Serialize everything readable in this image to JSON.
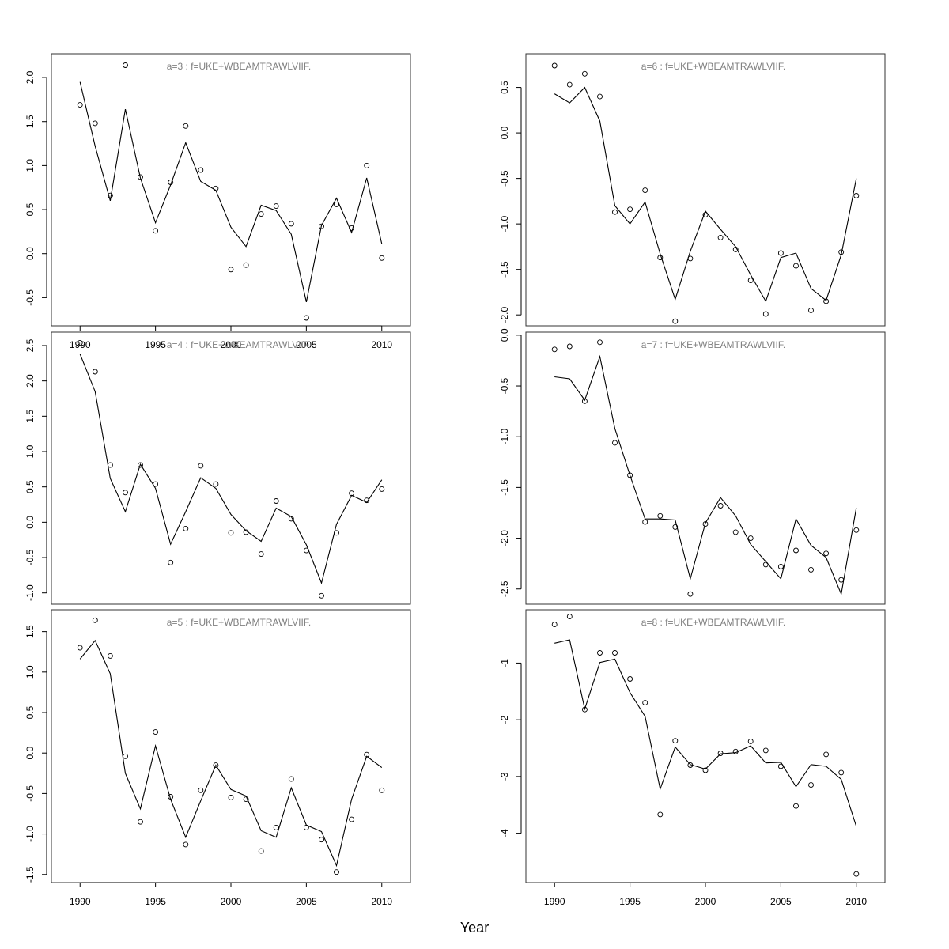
{
  "xlabel": "Year",
  "chart_data": [
    {
      "type": "line",
      "title": "a=3 : f=UKE+WBEAMTRAWLVIIF.",
      "x": [
        1990,
        1991,
        1992,
        1993,
        1994,
        1995,
        1996,
        1997,
        1998,
        1999,
        2000,
        2001,
        2002,
        2003,
        2004,
        2005,
        2006,
        2007,
        2008,
        2009,
        2010
      ],
      "series": [
        {
          "role": "fitted",
          "style": "line",
          "values": [
            1.95,
            1.22,
            0.6,
            1.64,
            0.86,
            0.35,
            0.78,
            1.26,
            0.82,
            0.72,
            0.3,
            0.08,
            0.55,
            0.49,
            0.22,
            -0.55,
            0.32,
            0.63,
            0.24,
            0.86,
            0.11
          ]
        },
        {
          "role": "observed",
          "style": "points",
          "values": [
            1.69,
            1.48,
            0.66,
            2.14,
            0.87,
            0.26,
            0.81,
            1.45,
            0.95,
            0.74,
            -0.18,
            -0.13,
            0.45,
            0.54,
            0.34,
            -0.73,
            0.31,
            0.56,
            0.29,
            1.0,
            -0.05
          ]
        }
      ],
      "yticks": [
        "-0.5",
        "0.0",
        "0.5",
        "1.0",
        "1.5",
        "2.0"
      ],
      "xticks": [
        "1990",
        "1995",
        "2000",
        "2005",
        "2010"
      ],
      "ylim": [
        -0.82,
        2.27
      ],
      "xlim": [
        1988.1,
        2011.9
      ]
    },
    {
      "type": "line",
      "title": "a=6 : f=UKE+WBEAMTRAWLVIIF.",
      "x": [
        1990,
        1991,
        1992,
        1993,
        1994,
        1995,
        1996,
        1997,
        1998,
        1999,
        2000,
        2001,
        2002,
        2003,
        2004,
        2005,
        2006,
        2007,
        2008,
        2009,
        2010
      ],
      "series": [
        {
          "role": "fitted",
          "style": "line",
          "values": [
            0.43,
            0.33,
            0.5,
            0.13,
            -0.8,
            -1.0,
            -0.76,
            -1.33,
            -1.83,
            -1.3,
            -0.86,
            -1.06,
            -1.25,
            -1.56,
            -1.85,
            -1.37,
            -1.32,
            -1.71,
            -1.84,
            -1.34,
            -0.5
          ]
        },
        {
          "role": "observed",
          "style": "points",
          "values": [
            0.74,
            0.53,
            0.65,
            0.4,
            -0.87,
            -0.84,
            -0.63,
            -1.37,
            -2.07,
            -1.38,
            -0.9,
            -1.15,
            -1.28,
            -1.62,
            -1.99,
            -1.32,
            -1.46,
            -1.95,
            -1.85,
            -1.31,
            -0.69
          ]
        }
      ],
      "yticks": [
        "-2.0",
        "-1.5",
        "-1.0",
        "-0.5",
        "0.0",
        "0.5"
      ],
      "xticks": [],
      "ylim": [
        -2.12,
        0.87
      ],
      "xlim": [
        1988.1,
        2011.9
      ]
    },
    {
      "type": "line",
      "title": "a=4 : f=UKE+WBEAMTRAWLVIIF.",
      "x": [
        1990,
        1991,
        1992,
        1993,
        1994,
        1995,
        1996,
        1997,
        1998,
        1999,
        2000,
        2001,
        2002,
        2003,
        2004,
        2005,
        2006,
        2007,
        2008,
        2009,
        2010
      ],
      "series": [
        {
          "role": "fitted",
          "style": "line",
          "values": [
            2.38,
            1.85,
            0.62,
            0.15,
            0.82,
            0.48,
            -0.31,
            0.15,
            0.63,
            0.48,
            0.11,
            -0.12,
            -0.27,
            0.2,
            0.08,
            -0.32,
            -0.86,
            -0.03,
            0.38,
            0.28,
            0.6
          ]
        },
        {
          "role": "observed",
          "style": "points",
          "values": [
            2.54,
            2.13,
            0.81,
            0.42,
            0.81,
            0.54,
            -0.57,
            -0.09,
            0.8,
            0.54,
            -0.15,
            -0.14,
            -0.45,
            0.3,
            0.05,
            -0.4,
            -1.04,
            -0.15,
            0.41,
            0.31,
            0.47
          ]
        }
      ],
      "yticks": [
        "-1.0",
        "-0.5",
        "0.0",
        "0.5",
        "1.0",
        "1.5",
        "2.0",
        "2.5"
      ],
      "xticks": [],
      "ylim": [
        -1.16,
        2.69
      ],
      "xlim": [
        1988.1,
        2011.9
      ]
    },
    {
      "type": "line",
      "title": "a=7 : f=UKE+WBEAMTRAWLVIIF.",
      "x": [
        1990,
        1991,
        1992,
        1993,
        1994,
        1995,
        1996,
        1997,
        1998,
        1999,
        2000,
        2001,
        2002,
        2003,
        2004,
        2005,
        2006,
        2007,
        2008,
        2009,
        2010
      ],
      "series": [
        {
          "role": "fitted",
          "style": "line",
          "values": [
            -0.41,
            -0.43,
            -0.64,
            -0.21,
            -0.92,
            -1.38,
            -1.81,
            -1.81,
            -1.82,
            -2.4,
            -1.85,
            -1.6,
            -1.78,
            -2.06,
            -2.23,
            -2.4,
            -1.81,
            -2.07,
            -2.19,
            -2.55,
            -1.7
          ]
        },
        {
          "role": "observed",
          "style": "points",
          "values": [
            -0.14,
            -0.11,
            -0.65,
            -0.07,
            -1.06,
            -1.38,
            -1.84,
            -1.78,
            -1.89,
            -2.55,
            -1.86,
            -1.68,
            -1.94,
            -2.0,
            -2.26,
            -2.28,
            -2.12,
            -2.31,
            -2.15,
            -2.41,
            -1.92
          ]
        }
      ],
      "yticks": [
        "-2.5",
        "-2.0",
        "-1.5",
        "-1.0",
        "-0.5",
        "0.0"
      ],
      "xticks": [],
      "ylim": [
        -2.65,
        0.03
      ],
      "xlim": [
        1988.1,
        2011.9
      ]
    },
    {
      "type": "line",
      "title": "a=5 : f=UKE+WBEAMTRAWLVIIF.",
      "x": [
        1990,
        1991,
        1992,
        1993,
        1994,
        1995,
        1996,
        1997,
        1998,
        1999,
        2000,
        2001,
        2002,
        2003,
        2004,
        2005,
        2006,
        2007,
        2008,
        2009,
        2010
      ],
      "series": [
        {
          "role": "fitted",
          "style": "line",
          "values": [
            1.16,
            1.39,
            0.98,
            -0.25,
            -0.69,
            0.09,
            -0.57,
            -1.04,
            -0.59,
            -0.15,
            -0.45,
            -0.53,
            -0.96,
            -1.04,
            -0.43,
            -0.89,
            -0.97,
            -1.39,
            -0.57,
            -0.04,
            -0.18
          ]
        },
        {
          "role": "observed",
          "style": "points",
          "values": [
            1.3,
            1.64,
            1.2,
            -0.04,
            -0.85,
            0.26,
            -0.54,
            -1.13,
            -0.46,
            -0.15,
            -0.55,
            -0.57,
            -1.21,
            -0.92,
            -0.32,
            -0.92,
            -1.07,
            -1.47,
            -0.82,
            -0.02,
            -0.46
          ]
        }
      ],
      "yticks": [
        "-1.5",
        "-1.0",
        "-0.5",
        "0.0",
        "0.5",
        "1.0",
        "1.5"
      ],
      "xticks": [
        "1990",
        "1995",
        "2000",
        "2005",
        "2010"
      ],
      "ylim": [
        -1.6,
        1.77
      ],
      "xlim": [
        1988.1,
        2011.9
      ]
    },
    {
      "type": "line",
      "title": "a=8 : f=UKE+WBEAMTRAWLVIIF.",
      "x": [
        1990,
        1991,
        1992,
        1993,
        1994,
        1995,
        1996,
        1997,
        1998,
        1999,
        2000,
        2001,
        2002,
        2003,
        2004,
        2005,
        2006,
        2007,
        2008,
        2009,
        2010
      ],
      "series": [
        {
          "role": "fitted",
          "style": "line",
          "values": [
            -0.65,
            -0.59,
            -1.81,
            -0.99,
            -0.93,
            -1.52,
            -1.94,
            -3.22,
            -2.48,
            -2.79,
            -2.87,
            -2.6,
            -2.58,
            -2.46,
            -2.76,
            -2.75,
            -3.18,
            -2.79,
            -2.82,
            -3.05,
            -3.88
          ]
        },
        {
          "role": "observed",
          "style": "points",
          "values": [
            -0.32,
            -0.18,
            -1.82,
            -0.82,
            -0.82,
            -1.28,
            -1.7,
            -3.67,
            -2.37,
            -2.8,
            -2.89,
            -2.59,
            -2.56,
            -2.38,
            -2.54,
            -2.82,
            -3.52,
            -3.15,
            -2.61,
            -2.93,
            -4.72
          ]
        }
      ],
      "yticks": [
        "-4",
        "-3",
        "-2",
        "-1"
      ],
      "xticks": [
        "1990",
        "1995",
        "2000",
        "2005",
        "2010"
      ],
      "ylim": [
        -4.87,
        -0.06
      ],
      "xlim": [
        1988.1,
        2011.9
      ]
    }
  ]
}
